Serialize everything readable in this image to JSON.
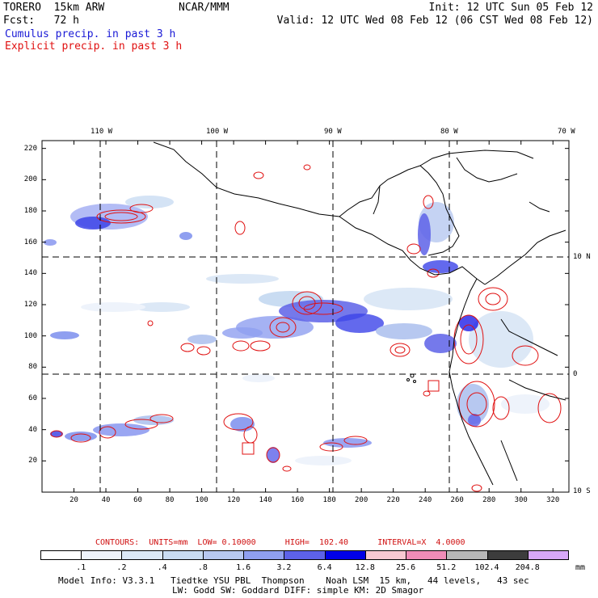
{
  "header": {
    "model": "TORERO  15km ARW",
    "org": "NCAR/MMM",
    "init": "Init: 12 UTC Sun 05 Feb 12",
    "fcst": "Fcst:   72 h",
    "valid": "Valid: 12 UTC Wed 08 Feb 12 (06 CST Wed 08 Feb 12)",
    "cumulus_label": "Cumulus precip. in past 3 h",
    "explicit_label": "Explicit precip. in past 3 h"
  },
  "colors": {
    "cumulus": "#1a1ad6",
    "explicit": "#e01010",
    "coast": "#000000"
  },
  "map": {
    "lon_labels": [
      "110 W",
      "100 W",
      "90 W",
      "80 W",
      "70 W"
    ],
    "lat_labels": [
      "10 N",
      "0",
      "10 S"
    ],
    "y_ticks": [
      "220",
      "200",
      "180",
      "160",
      "140",
      "120",
      "100",
      "80",
      "60",
      "40",
      "20"
    ],
    "x_ticks": [
      "20",
      "40",
      "60",
      "80",
      "100",
      "120",
      "140",
      "160",
      "180",
      "200",
      "220",
      "240",
      "260",
      "280",
      "300",
      "320"
    ],
    "grid_x_range": [
      0,
      330
    ],
    "grid_y_range": [
      0,
      225
    ]
  },
  "legend": {
    "contours": "CONTOURS:  UNITS=mm  LOW= 0.10000      HIGH=  102.40      INTERVAL=X  4.0000",
    "levels": [
      ".1",
      ".2",
      ".4",
      ".8",
      "1.6",
      "3.2",
      "6.4",
      "12.8",
      "25.6",
      "51.2",
      "102.4",
      "204.8"
    ],
    "unit": "mm",
    "bin_colors": [
      "#ffffff",
      "#eef3fb",
      "#dce8f6",
      "#c9dcf2",
      "#b7c8f0",
      "#8f9ff0",
      "#5d62e8",
      "#0000e6",
      "#f8c8d2",
      "#f08cb8",
      "#b8b8b8",
      "#3c3c3c",
      "#d8a8f8"
    ]
  },
  "footer": {
    "line1": "Model Info: V3.3.1   Tiedtke YSU PBL  Thompson    Noah LSM  15 km,   44 levels,   43 sec",
    "line2": "LW: Godd SW: Goddard DIFF: simple KM: 2D Smagor"
  }
}
